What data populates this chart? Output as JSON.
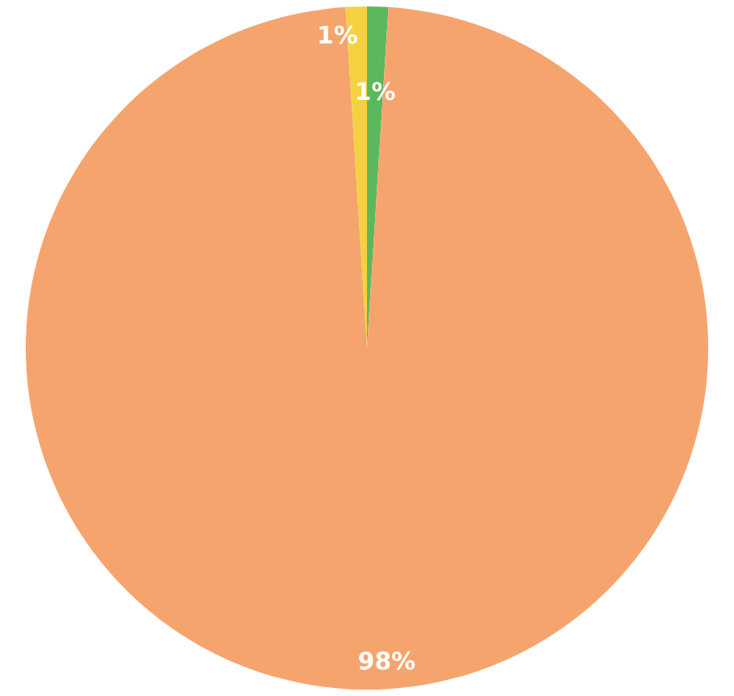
{
  "chart_data": {
    "type": "pie",
    "categories": [
      null,
      null,
      null
    ],
    "values": [
      1,
      98,
      1
    ],
    "colors": [
      "#5cb85c",
      "#f6a46e",
      "#f3d23f"
    ],
    "value_labels": [
      "1%",
      "98%",
      "1%"
    ]
  }
}
